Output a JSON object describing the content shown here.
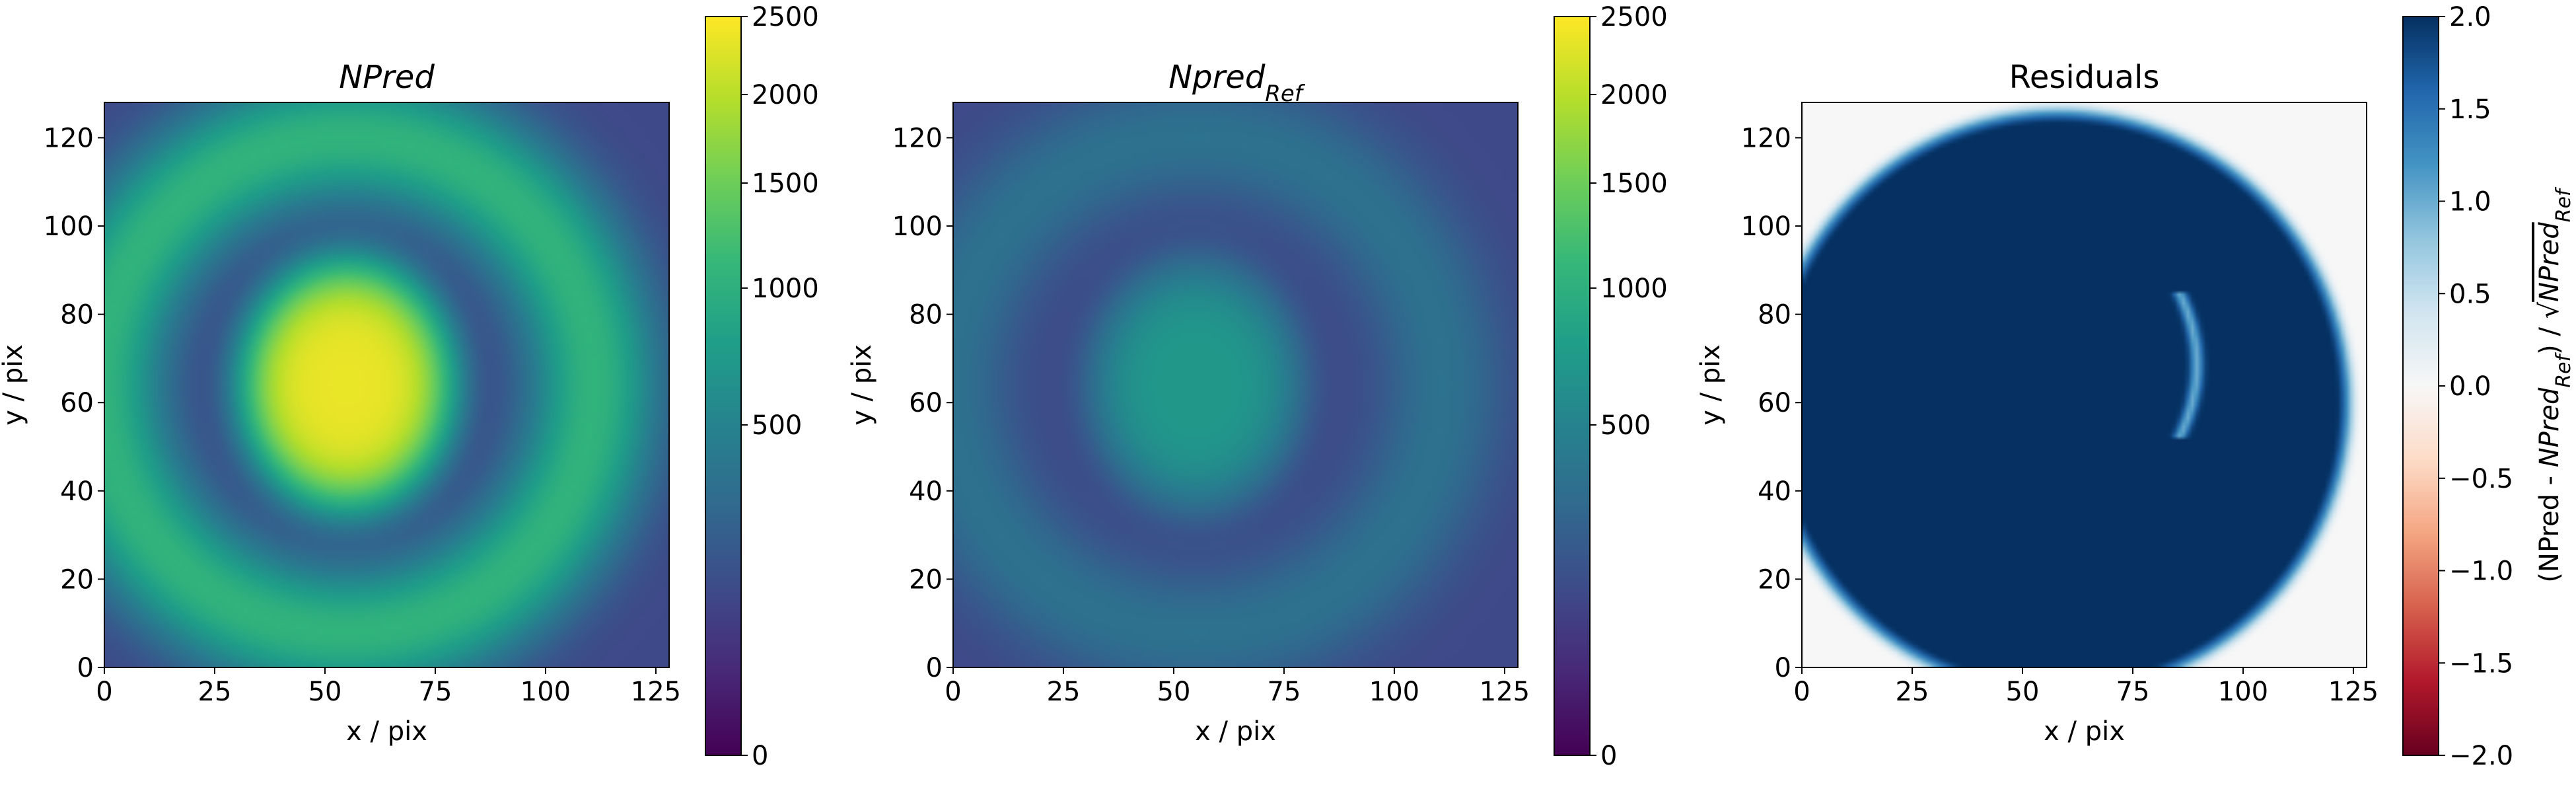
{
  "chart_data": [
    {
      "type": "heatmap",
      "title": "NPred",
      "title_style": "italic",
      "xlabel": "x / pix",
      "ylabel": "y / pix",
      "xlim": [
        0,
        128
      ],
      "ylim": [
        0,
        128
      ],
      "xticks": [
        0,
        25,
        50,
        75,
        100,
        125
      ],
      "yticks": [
        0,
        20,
        40,
        60,
        80,
        100,
        120
      ],
      "colormap": "viridis",
      "colorbar": {
        "min": 0,
        "max": 2500,
        "scale": "sqrt",
        "ticks": [
          0,
          500,
          1000,
          1500,
          2000,
          2500
        ]
      },
      "pattern": {
        "core_center": [
          55,
          64
        ],
        "core_value": 2350,
        "core_extent": [
          23,
          27
        ],
        "ring_center": [
          55,
          64
        ],
        "ring_radius": 56,
        "ring_value": 1050,
        "background_value": 120
      }
    },
    {
      "type": "heatmap",
      "title": "Npred",
      "title_sub": "Ref",
      "title_style": "italic",
      "xlabel": "x / pix",
      "ylabel": "y / pix",
      "xlim": [
        0,
        128
      ],
      "ylim": [
        0,
        128
      ],
      "xticks": [
        0,
        25,
        50,
        75,
        100,
        125
      ],
      "yticks": [
        0,
        20,
        40,
        60,
        80,
        100,
        120
      ],
      "colormap": "viridis",
      "colorbar": {
        "min": 0,
        "max": 2500,
        "scale": "sqrt",
        "ticks": [
          0,
          500,
          1000,
          1500,
          2000,
          2500
        ]
      },
      "pattern": {
        "core_center": [
          55,
          64
        ],
        "core_value": 700,
        "core_extent": [
          23,
          27
        ],
        "ring_center": [
          55,
          64
        ],
        "ring_radius": 56,
        "ring_value": 350,
        "background_value": 120
      }
    },
    {
      "type": "heatmap",
      "title": "Residuals",
      "xlabel": "x / pix",
      "ylabel": "y / pix",
      "xlim": [
        0,
        128
      ],
      "ylim": [
        0,
        128
      ],
      "xticks": [
        0,
        25,
        50,
        75,
        100,
        125
      ],
      "yticks": [
        0,
        20,
        40,
        60,
        80,
        100,
        120
      ],
      "colormap": "RdBu",
      "colorbar": {
        "min": -2.0,
        "max": 2.0,
        "ticks": [
          -2.0,
          -1.5,
          -1.0,
          -0.5,
          0.0,
          0.5,
          1.0,
          1.5,
          2.0
        ],
        "tick_labels": [
          "−2.0",
          "−1.5",
          "−1.0",
          "−0.5",
          "0.0",
          "0.5",
          "1.0",
          "1.5",
          "2.0"
        ],
        "label_parts": [
          "(NPred - ",
          "NPred",
          "Ref",
          ") / ",
          "√",
          "NPred",
          "Ref"
        ]
      },
      "pattern": {
        "disk_center": [
          58,
          60
        ],
        "disk_radius": 66,
        "inside_value": 2.0,
        "outside_value": 0.0,
        "streak": {
          "x": 87,
          "y_range": [
            52,
            85
          ],
          "value": 1.0
        }
      }
    }
  ]
}
